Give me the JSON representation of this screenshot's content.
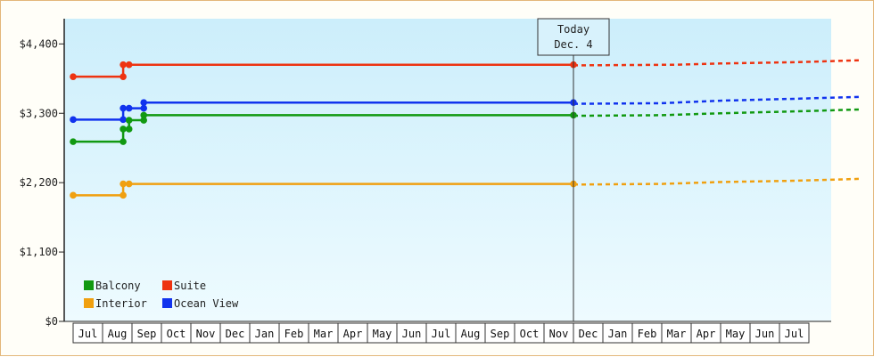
{
  "chart_data": {
    "type": "line",
    "title": "",
    "xlabel": "",
    "ylabel": "",
    "ylim": [
      0,
      4800
    ],
    "y_ticks": [
      {
        "value": 0,
        "label": "$0"
      },
      {
        "value": 1100,
        "label": "$1,100"
      },
      {
        "value": 2200,
        "label": "$2,200"
      },
      {
        "value": 3300,
        "label": "$3,300"
      },
      {
        "value": 4400,
        "label": "$4,400"
      }
    ],
    "x_months": [
      "Jul",
      "Aug",
      "Sep",
      "Oct",
      "Nov",
      "Dec",
      "Jan",
      "Feb",
      "Mar",
      "Apr",
      "May",
      "Jun",
      "Jul",
      "Aug",
      "Sep",
      "Oct",
      "Nov",
      "Dec",
      "Jan",
      "Feb",
      "Mar",
      "Apr",
      "May",
      "Jun",
      "Jul"
    ],
    "background": "gradient light blue",
    "grid": false,
    "today_marker": {
      "line1": "Today",
      "line2": "Dec. 4",
      "month_index": 17.0
    },
    "legend": {
      "placement": "bottom-left",
      "items": [
        {
          "label": "Balcony",
          "color": "#119911"
        },
        {
          "label": "Suite",
          "color": "#ee3311"
        },
        {
          "label": "Interior",
          "color": "#f0a010"
        },
        {
          "label": "Ocean View",
          "color": "#1133ee"
        }
      ]
    },
    "series": [
      {
        "name": "Suite",
        "color": "#ee3311",
        "points": [
          [
            0,
            3880
          ],
          [
            1.7,
            3880
          ],
          [
            1.7,
            4070
          ],
          [
            1.9,
            4070
          ],
          [
            17.0,
            4070
          ]
        ],
        "forecast": [
          [
            17.0,
            4060
          ],
          [
            20.5,
            4070
          ],
          [
            22.0,
            4090
          ],
          [
            24.5,
            4110
          ],
          [
            26.7,
            4140
          ]
        ]
      },
      {
        "name": "Ocean View",
        "color": "#1133ee",
        "points": [
          [
            0,
            3200
          ],
          [
            1.7,
            3200
          ],
          [
            1.7,
            3380
          ],
          [
            1.9,
            3380
          ],
          [
            2.4,
            3380
          ],
          [
            2.4,
            3470
          ],
          [
            17.0,
            3470
          ]
        ],
        "forecast": [
          [
            17.0,
            3450
          ],
          [
            20.0,
            3460
          ],
          [
            22.0,
            3500
          ],
          [
            24.5,
            3530
          ],
          [
            26.7,
            3560
          ]
        ]
      },
      {
        "name": "Balcony",
        "color": "#119911",
        "points": [
          [
            0,
            2850
          ],
          [
            1.7,
            2850
          ],
          [
            1.7,
            3050
          ],
          [
            1.9,
            3050
          ],
          [
            1.9,
            3190
          ],
          [
            2.4,
            3190
          ],
          [
            2.4,
            3270
          ],
          [
            17.0,
            3270
          ]
        ],
        "forecast": [
          [
            17.0,
            3260
          ],
          [
            20.0,
            3270
          ],
          [
            22.0,
            3300
          ],
          [
            24.5,
            3330
          ],
          [
            26.7,
            3360
          ]
        ]
      },
      {
        "name": "Interior",
        "color": "#f0a010",
        "points": [
          [
            0,
            2000
          ],
          [
            1.7,
            2000
          ],
          [
            1.7,
            2180
          ],
          [
            1.9,
            2180
          ],
          [
            17.0,
            2180
          ]
        ],
        "forecast": [
          [
            17.0,
            2170
          ],
          [
            20.0,
            2180
          ],
          [
            22.0,
            2210
          ],
          [
            24.5,
            2230
          ],
          [
            26.7,
            2260
          ]
        ]
      }
    ]
  }
}
